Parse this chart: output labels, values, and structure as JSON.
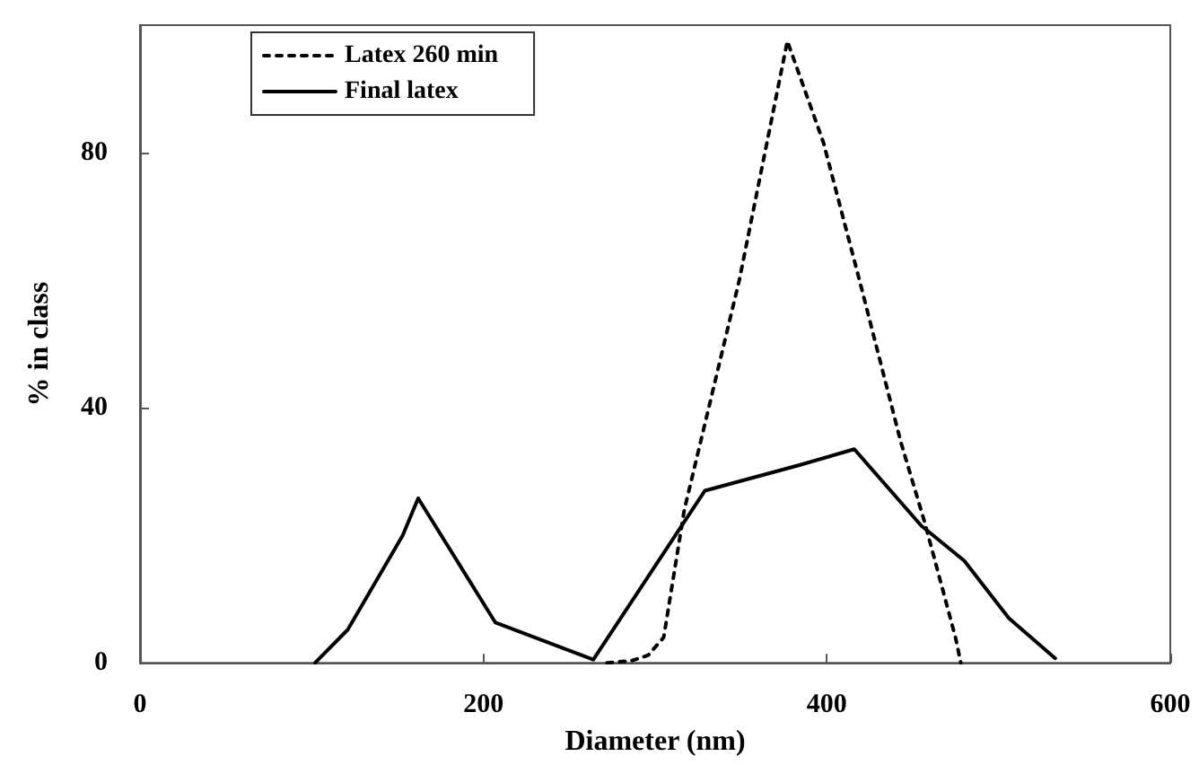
{
  "chart_data": {
    "type": "line",
    "xlabel": "Diameter (nm)",
    "ylabel": "% in class",
    "xlim": [
      0,
      600
    ],
    "xticks": [
      0,
      200,
      400,
      600
    ],
    "ylim": [
      0,
      100
    ],
    "yticks": [
      0,
      40,
      80
    ],
    "grid": false,
    "legend": "top left",
    "marker": "none",
    "series": [
      {
        "name": "Latex 260 min",
        "color": "#000000",
        "line_style": "dotted",
        "x": [
          272,
          286,
          296,
          305,
          317,
          349,
          377,
          398,
          419,
          443,
          457,
          475,
          478
        ],
        "values": [
          0,
          0.3,
          1.2,
          4,
          24,
          60,
          97.5,
          81.6,
          60,
          34.7,
          22,
          3.9,
          0
        ]
      },
      {
        "name": "Final latex",
        "color": "#000000",
        "line_style": "solid",
        "x": [
          102,
          121,
          153,
          162,
          207,
          264,
          329,
          384,
          416,
          455,
          480,
          506,
          533
        ],
        "values": [
          0,
          5.2,
          20,
          25.8,
          6.3,
          0.5,
          27,
          31,
          33.5,
          21.5,
          16,
          7,
          0.7
        ]
      }
    ]
  }
}
